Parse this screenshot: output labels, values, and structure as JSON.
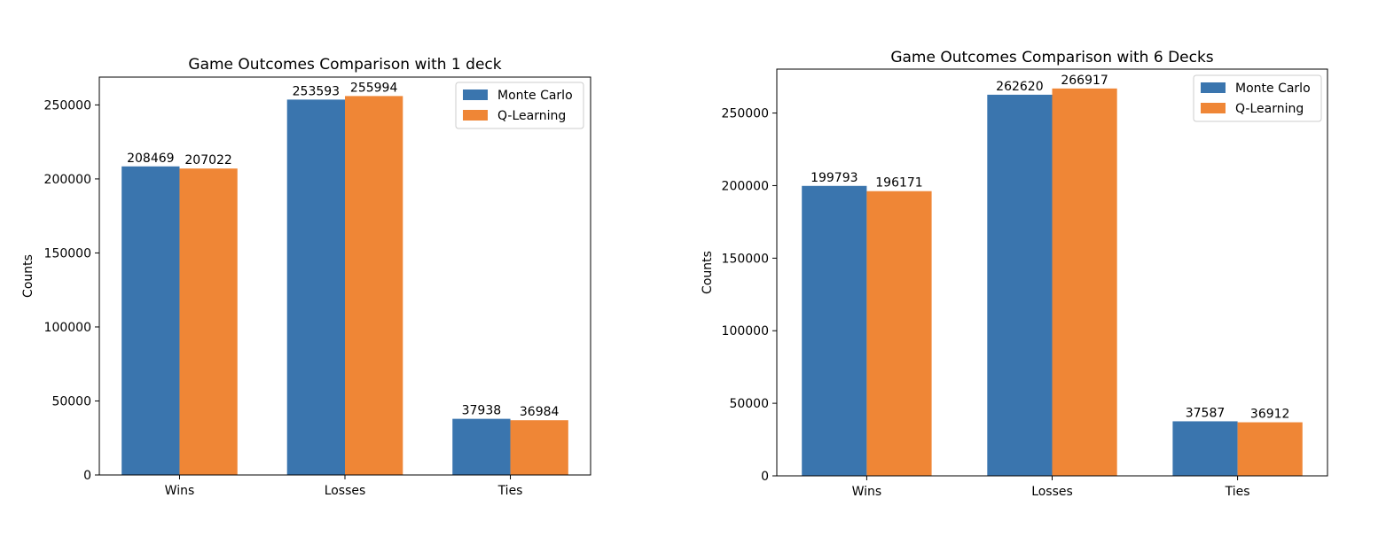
{
  "colors": {
    "monte_carlo": "#3a75ae",
    "q_learning": "#ef8636"
  },
  "chart_data": [
    {
      "type": "bar",
      "title": "Game Outcomes Comparison with 1 deck",
      "xlabel": "",
      "ylabel": "Counts",
      "categories": [
        "Wins",
        "Losses",
        "Ties"
      ],
      "series": [
        {
          "name": "Monte Carlo",
          "values": [
            208469,
            253593,
            37938
          ]
        },
        {
          "name": "Q-Learning",
          "values": [
            207022,
            255994,
            36984
          ]
        }
      ],
      "ylim": [
        0,
        268793
      ],
      "yticks": [
        0,
        50000,
        100000,
        150000,
        200000,
        250000
      ],
      "ytick_labels": [
        "0",
        "50000",
        "100000",
        "150000",
        "200000",
        "250000"
      ],
      "legend": "top-right",
      "grid": false
    },
    {
      "type": "bar",
      "title": "Game Outcomes Comparison with 6 Decks",
      "xlabel": "",
      "ylabel": "Counts",
      "categories": [
        "Wins",
        "Losses",
        "Ties"
      ],
      "series": [
        {
          "name": "Monte Carlo",
          "values": [
            199793,
            262620,
            37587
          ]
        },
        {
          "name": "Q-Learning",
          "values": [
            196171,
            266917,
            36912
          ]
        }
      ],
      "ylim": [
        0,
        280263
      ],
      "yticks": [
        0,
        50000,
        100000,
        150000,
        200000,
        250000
      ],
      "ytick_labels": [
        "0",
        "50000",
        "100000",
        "150000",
        "200000",
        "250000"
      ],
      "legend": "top-right",
      "grid": false
    }
  ]
}
